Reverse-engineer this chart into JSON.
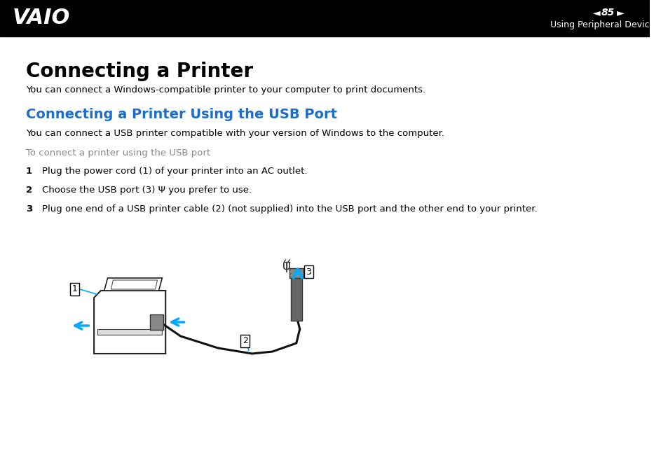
{
  "bg_color": "#ffffff",
  "header_bg": "#000000",
  "header_text_color": "#ffffff",
  "page_number": "85",
  "header_right_text": "Using Peripheral Devices",
  "title": "Connecting a Printer",
  "title_fontsize": 20,
  "subtitle_color": "#1e6ec8",
  "subtitle": "Connecting a Printer Using the USB Port",
  "subtitle_fontsize": 14,
  "body_text_color": "#000000",
  "gray_text_color": "#888888",
  "body_fontsize": 9.5,
  "para1": "You can connect a Windows-compatible printer to your computer to print documents.",
  "para2": "You can connect a USB printer compatible with your version of Windows to the computer.",
  "gray_heading": "To connect a printer using the USB port",
  "step1": "Plug the power cord (1) of your printer into an AC outlet.",
  "step2": "Choose the USB port (3)  Ψ  you prefer to use.",
  "step3": "Plug one end of a USB printer cable (2) (not supplied) into the USB port and the other end to your printer.",
  "arrow_color": "#00aaff",
  "line_color": "#000000",
  "box_label_color": "#000000"
}
